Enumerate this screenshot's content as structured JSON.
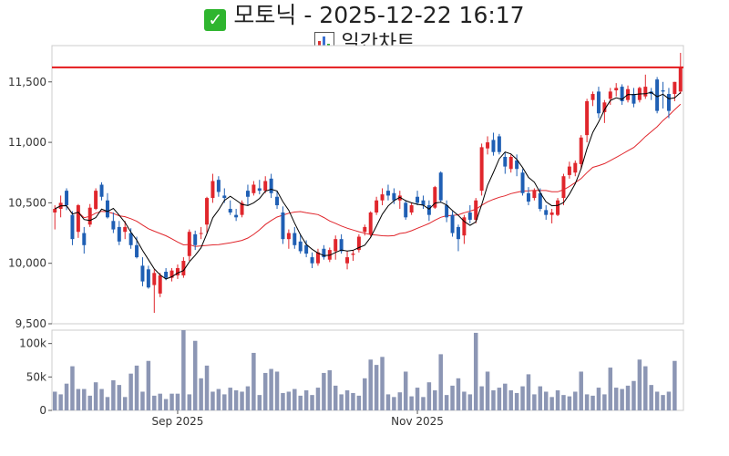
{
  "header": {
    "title": "모토닉 - 2025-12-22 16:17",
    "subtitle": "일간차트"
  },
  "colors": {
    "up": "#e0262c",
    "down": "#1f5fb4",
    "ma5": "#000000",
    "ma20": "#e0262c",
    "ref": "#e41a1c",
    "volume": "#8c96b4"
  },
  "chart_data": {
    "type": "candlestick",
    "price_axis": {
      "ylim": [
        9500,
        11800
      ],
      "ticks": [
        9500,
        10000,
        10500,
        11000,
        11500
      ],
      "tick_labels": [
        "9,500",
        "10,000",
        "10,500",
        "11,000",
        "11,500"
      ]
    },
    "volume_axis": {
      "ylim": [
        0,
        120000
      ],
      "ticks": [
        0,
        50000,
        100000
      ],
      "tick_labels": [
        "0",
        "50k",
        "100k"
      ]
    },
    "x_labels": [
      {
        "index": 21,
        "label": "Sep 2025"
      },
      {
        "index": 62,
        "label": "Nov 2025"
      }
    ],
    "reference_line": 11620,
    "candles": [
      [
        10420,
        10480,
        10280,
        10450
      ],
      [
        10450,
        10560,
        10380,
        10500
      ],
      [
        10600,
        10620,
        10440,
        10480
      ],
      [
        10400,
        10430,
        10150,
        10200
      ],
      [
        10260,
        10490,
        10210,
        10480
      ],
      [
        10250,
        10300,
        10080,
        10150
      ],
      [
        10320,
        10490,
        10300,
        10460
      ],
      [
        10450,
        10620,
        10440,
        10600
      ],
      [
        10650,
        10670,
        10520,
        10550
      ],
      [
        10520,
        10580,
        10370,
        10380
      ],
      [
        10350,
        10420,
        10250,
        10280
      ],
      [
        10300,
        10350,
        10150,
        10180
      ],
      [
        10260,
        10350,
        10200,
        10300
      ],
      [
        10250,
        10290,
        10120,
        10150
      ],
      [
        10150,
        10220,
        10040,
        10050
      ],
      [
        9980,
        10050,
        9810,
        9850
      ],
      [
        9950,
        9980,
        9790,
        9800
      ],
      [
        9820,
        9950,
        9590,
        9920
      ],
      [
        9750,
        9920,
        9720,
        9900
      ],
      [
        9930,
        9960,
        9860,
        9880
      ],
      [
        9880,
        9960,
        9850,
        9940
      ],
      [
        9900,
        9990,
        9870,
        9960
      ],
      [
        9900,
        10050,
        9880,
        10020
      ],
      [
        10060,
        10280,
        10020,
        10260
      ],
      [
        10240,
        10270,
        10110,
        10150
      ],
      [
        10250,
        10300,
        10200,
        10250
      ],
      [
        10320,
        10550,
        10250,
        10540
      ],
      [
        10540,
        10740,
        10500,
        10680
      ],
      [
        10690,
        10720,
        10550,
        10590
      ],
      [
        10560,
        10620,
        10500,
        10540
      ],
      [
        10450,
        10520,
        10400,
        10420
      ],
      [
        10400,
        10450,
        10350,
        10380
      ],
      [
        10400,
        10520,
        10380,
        10500
      ],
      [
        10600,
        10650,
        10480,
        10550
      ],
      [
        10580,
        10680,
        10560,
        10650
      ],
      [
        10620,
        10690,
        10570,
        10600
      ],
      [
        10600,
        10720,
        10580,
        10680
      ],
      [
        10700,
        10740,
        10540,
        10580
      ],
      [
        10550,
        10600,
        10450,
        10480
      ],
      [
        10420,
        10470,
        10160,
        10200
      ],
      [
        10200,
        10280,
        10120,
        10250
      ],
      [
        10250,
        10300,
        10120,
        10150
      ],
      [
        10180,
        10240,
        10080,
        10100
      ],
      [
        10150,
        10190,
        10050,
        10080
      ],
      [
        10050,
        10090,
        9960,
        10000
      ],
      [
        10000,
        10120,
        9980,
        10090
      ],
      [
        10120,
        10150,
        10030,
        10050
      ],
      [
        10030,
        10130,
        10010,
        10110
      ],
      [
        10100,
        10230,
        10030,
        10200
      ],
      [
        10200,
        10240,
        10080,
        10100
      ],
      [
        10000,
        10100,
        9950,
        10050
      ],
      [
        10070,
        10110,
        10020,
        10080
      ],
      [
        10110,
        10240,
        10090,
        10220
      ],
      [
        10260,
        10320,
        10230,
        10300
      ],
      [
        10240,
        10430,
        10220,
        10420
      ],
      [
        10420,
        10550,
        10400,
        10520
      ],
      [
        10520,
        10620,
        10480,
        10570
      ],
      [
        10600,
        10650,
        10520,
        10560
      ],
      [
        10580,
        10620,
        10490,
        10520
      ],
      [
        10520,
        10600,
        10450,
        10560
      ],
      [
        10500,
        10520,
        10360,
        10380
      ],
      [
        10420,
        10500,
        10400,
        10480
      ],
      [
        10550,
        10600,
        10480,
        10500
      ],
      [
        10520,
        10560,
        10450,
        10480
      ],
      [
        10480,
        10520,
        10350,
        10400
      ],
      [
        10460,
        10640,
        10450,
        10630
      ],
      [
        10750,
        10760,
        10500,
        10520
      ],
      [
        10480,
        10520,
        10340,
        10380
      ],
      [
        10400,
        10430,
        10220,
        10250
      ],
      [
        10300,
        10320,
        10100,
        10200
      ],
      [
        10230,
        10400,
        10160,
        10380
      ],
      [
        10420,
        10480,
        10330,
        10360
      ],
      [
        10360,
        10540,
        10330,
        10520
      ],
      [
        10600,
        10990,
        10560,
        10960
      ],
      [
        10950,
        11050,
        10900,
        11000
      ],
      [
        11020,
        11080,
        10890,
        10920
      ],
      [
        11050,
        11070,
        10900,
        10920
      ],
      [
        10880,
        10920,
        10740,
        10800
      ],
      [
        10780,
        10900,
        10750,
        10880
      ],
      [
        10850,
        10900,
        10720,
        10780
      ],
      [
        10750,
        10780,
        10560,
        10580
      ],
      [
        10580,
        10630,
        10480,
        10510
      ],
      [
        10540,
        10620,
        10520,
        10600
      ],
      [
        10580,
        10620,
        10430,
        10450
      ],
      [
        10440,
        10480,
        10360,
        10400
      ],
      [
        10400,
        10450,
        10330,
        10420
      ],
      [
        10400,
        10540,
        10390,
        10520
      ],
      [
        10540,
        10740,
        10480,
        10720
      ],
      [
        10730,
        10840,
        10700,
        10800
      ],
      [
        10750,
        10850,
        10720,
        10830
      ],
      [
        10820,
        11060,
        10780,
        11040
      ],
      [
        11060,
        11360,
        11000,
        11340
      ],
      [
        11350,
        11420,
        11300,
        11400
      ],
      [
        11420,
        11460,
        11200,
        11240
      ],
      [
        11250,
        11350,
        11160,
        11330
      ],
      [
        11360,
        11450,
        11310,
        11420
      ],
      [
        11430,
        11490,
        11380,
        11450
      ],
      [
        11460,
        11480,
        11310,
        11340
      ],
      [
        11350,
        11470,
        11330,
        11440
      ],
      [
        11400,
        11450,
        11290,
        11320
      ],
      [
        11350,
        11460,
        11330,
        11450
      ],
      [
        11380,
        11560,
        11360,
        11460
      ],
      [
        11420,
        11450,
        11350,
        11400
      ],
      [
        11520,
        11540,
        11240,
        11260
      ],
      [
        11430,
        11500,
        11280,
        11420
      ],
      [
        11400,
        11450,
        11200,
        11260
      ],
      [
        11400,
        11500,
        11340,
        11500
      ],
      [
        11420,
        11740,
        11400,
        11620
      ]
    ],
    "volumes": [
      28000,
      24000,
      40000,
      66000,
      32000,
      32000,
      22000,
      42000,
      32000,
      20000,
      45000,
      38000,
      20000,
      55000,
      67000,
      28000,
      74000,
      22000,
      25000,
      17000,
      25000,
      25000,
      120000,
      24000,
      104000,
      48000,
      67000,
      28000,
      32000,
      24000,
      34000,
      30000,
      28000,
      36000,
      86000,
      23000,
      56000,
      62000,
      58000,
      26000,
      28000,
      32000,
      22000,
      30000,
      23000,
      34000,
      56000,
      60000,
      37000,
      24000,
      30000,
      26000,
      22000,
      48000,
      76000,
      68000,
      80000,
      24000,
      20000,
      27000,
      58000,
      21000,
      34000,
      20000,
      42000,
      30000,
      84000,
      23000,
      37000,
      48000,
      28000,
      24000,
      116000,
      36000,
      58000,
      30000,
      34000,
      40000,
      30000,
      26000,
      36000,
      54000,
      24000,
      36000,
      28000,
      20000,
      30000,
      23000,
      21000,
      28000,
      58000,
      24000,
      22000,
      34000,
      24000,
      64000,
      34000,
      32000,
      37000,
      44000,
      76000,
      66000,
      38000,
      28000,
      23000,
      28000,
      74000
    ]
  }
}
